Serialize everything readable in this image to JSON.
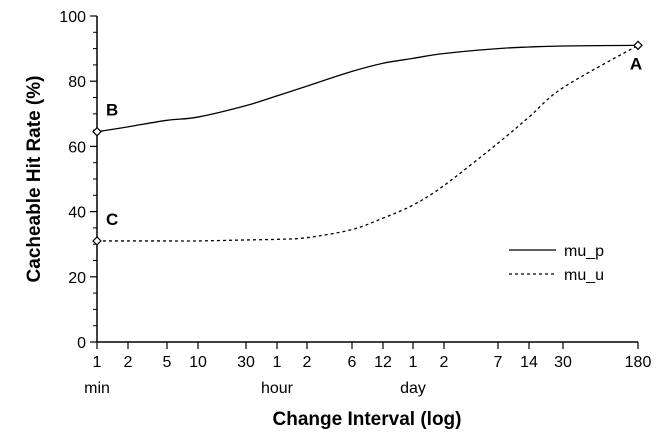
{
  "chart_data": {
    "type": "line",
    "xlabel": "Change Interval (log)",
    "ylabel": "Cacheable Hit Rate (%)",
    "ylim": [
      0,
      100
    ],
    "yticks": [
      0,
      20,
      40,
      60,
      80,
      100
    ],
    "x_scale": "log",
    "x_ticks": [
      {
        "label": "1",
        "unit": "min"
      },
      {
        "label": "2",
        "unit": ""
      },
      {
        "label": "5",
        "unit": ""
      },
      {
        "label": "10",
        "unit": ""
      },
      {
        "label": "30",
        "unit": ""
      },
      {
        "label": "1",
        "unit": "hour"
      },
      {
        "label": "2",
        "unit": ""
      },
      {
        "label": "6",
        "unit": ""
      },
      {
        "label": "12",
        "unit": ""
      },
      {
        "label": "1",
        "unit": "day"
      },
      {
        "label": "2",
        "unit": ""
      },
      {
        "label": "7",
        "unit": ""
      },
      {
        "label": "14",
        "unit": ""
      },
      {
        "label": "30",
        "unit": ""
      },
      {
        "label": "180",
        "unit": ""
      }
    ],
    "series": [
      {
        "name": "mu_p",
        "style": "solid",
        "x": [
          "1 min",
          "2 min",
          "5 min",
          "10 min",
          "30 min",
          "1 hour",
          "2 hour",
          "6 hour",
          "12 hour",
          "1 day",
          "2 day",
          "7 day",
          "14 day",
          "30 day",
          "180 day"
        ],
        "values": [
          64.5,
          66,
          68,
          69,
          72.5,
          75.5,
          78.5,
          83,
          85.5,
          87,
          88.5,
          90,
          90.5,
          90.8,
          91
        ]
      },
      {
        "name": "mu_u",
        "style": "dotted",
        "x": [
          "1 min",
          "2 min",
          "5 min",
          "10 min",
          "30 min",
          "1 hour",
          "2 hour",
          "6 hour",
          "12 hour",
          "1 day",
          "2 day",
          "7 day",
          "14 day",
          "30 day",
          "180 day"
        ],
        "values": [
          31,
          31,
          31,
          31,
          31.3,
          31.5,
          32,
          34.5,
          38,
          42,
          48,
          61,
          69,
          78,
          91
        ]
      }
    ],
    "annotations": [
      {
        "label": "A",
        "series": "mu_p",
        "x": "180 day",
        "y": 91
      },
      {
        "label": "B",
        "series": "mu_p",
        "x": "1 min",
        "y": 64.5
      },
      {
        "label": "C",
        "series": "mu_u",
        "x": "1 min",
        "y": 31
      }
    ],
    "legend": {
      "position": "right-middle"
    },
    "grid": false
  }
}
